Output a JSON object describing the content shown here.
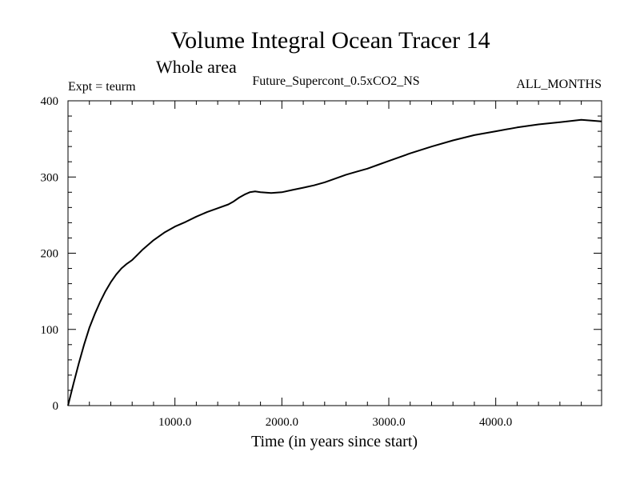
{
  "chart_data": {
    "type": "line",
    "title": "Volume Integral Ocean Tracer 14",
    "subtitle": "Whole area",
    "header_left": "Expt = teurm",
    "header_center": "Future_Supercont_0.5xCO2_NS",
    "header_right": "ALL_MONTHS",
    "xlabel": "Time (in years since start)",
    "ylabel": "",
    "xlim": [
      0,
      4990
    ],
    "ylim": [
      0,
      400
    ],
    "xticks": [
      1000,
      2000,
      3000,
      4000
    ],
    "xtick_labels": [
      "1000.0",
      "2000.0",
      "3000.0",
      "4000.0"
    ],
    "yticks": [
      0,
      100,
      200,
      300,
      400
    ],
    "ytick_labels": [
      "0",
      "100",
      "200",
      "300",
      "400"
    ],
    "grid": false,
    "series": [
      {
        "x": [
          0,
          50,
          100,
          150,
          200,
          250,
          300,
          350,
          400,
          450,
          500,
          550,
          600,
          650,
          700,
          800,
          900,
          1000,
          1100,
          1200,
          1300,
          1400,
          1500,
          1550,
          1600,
          1650,
          1700,
          1750,
          1800,
          1900,
          2000,
          2100,
          2200,
          2300,
          2400,
          2500,
          2600,
          2700,
          2800,
          2900,
          3000,
          3200,
          3400,
          3600,
          3800,
          4000,
          4200,
          4400,
          4600,
          4800,
          4990
        ],
        "y": [
          0,
          28,
          55,
          80,
          102,
          120,
          136,
          150,
          162,
          172,
          180,
          186,
          191,
          198,
          205,
          217,
          227,
          235,
          241,
          248,
          254,
          259,
          264,
          268,
          273,
          277,
          280,
          281,
          280,
          279,
          280,
          283,
          286,
          289,
          293,
          298,
          303,
          307,
          311,
          316,
          321,
          331,
          340,
          348,
          355,
          360,
          365,
          369,
          372,
          375,
          373
        ]
      }
    ]
  }
}
